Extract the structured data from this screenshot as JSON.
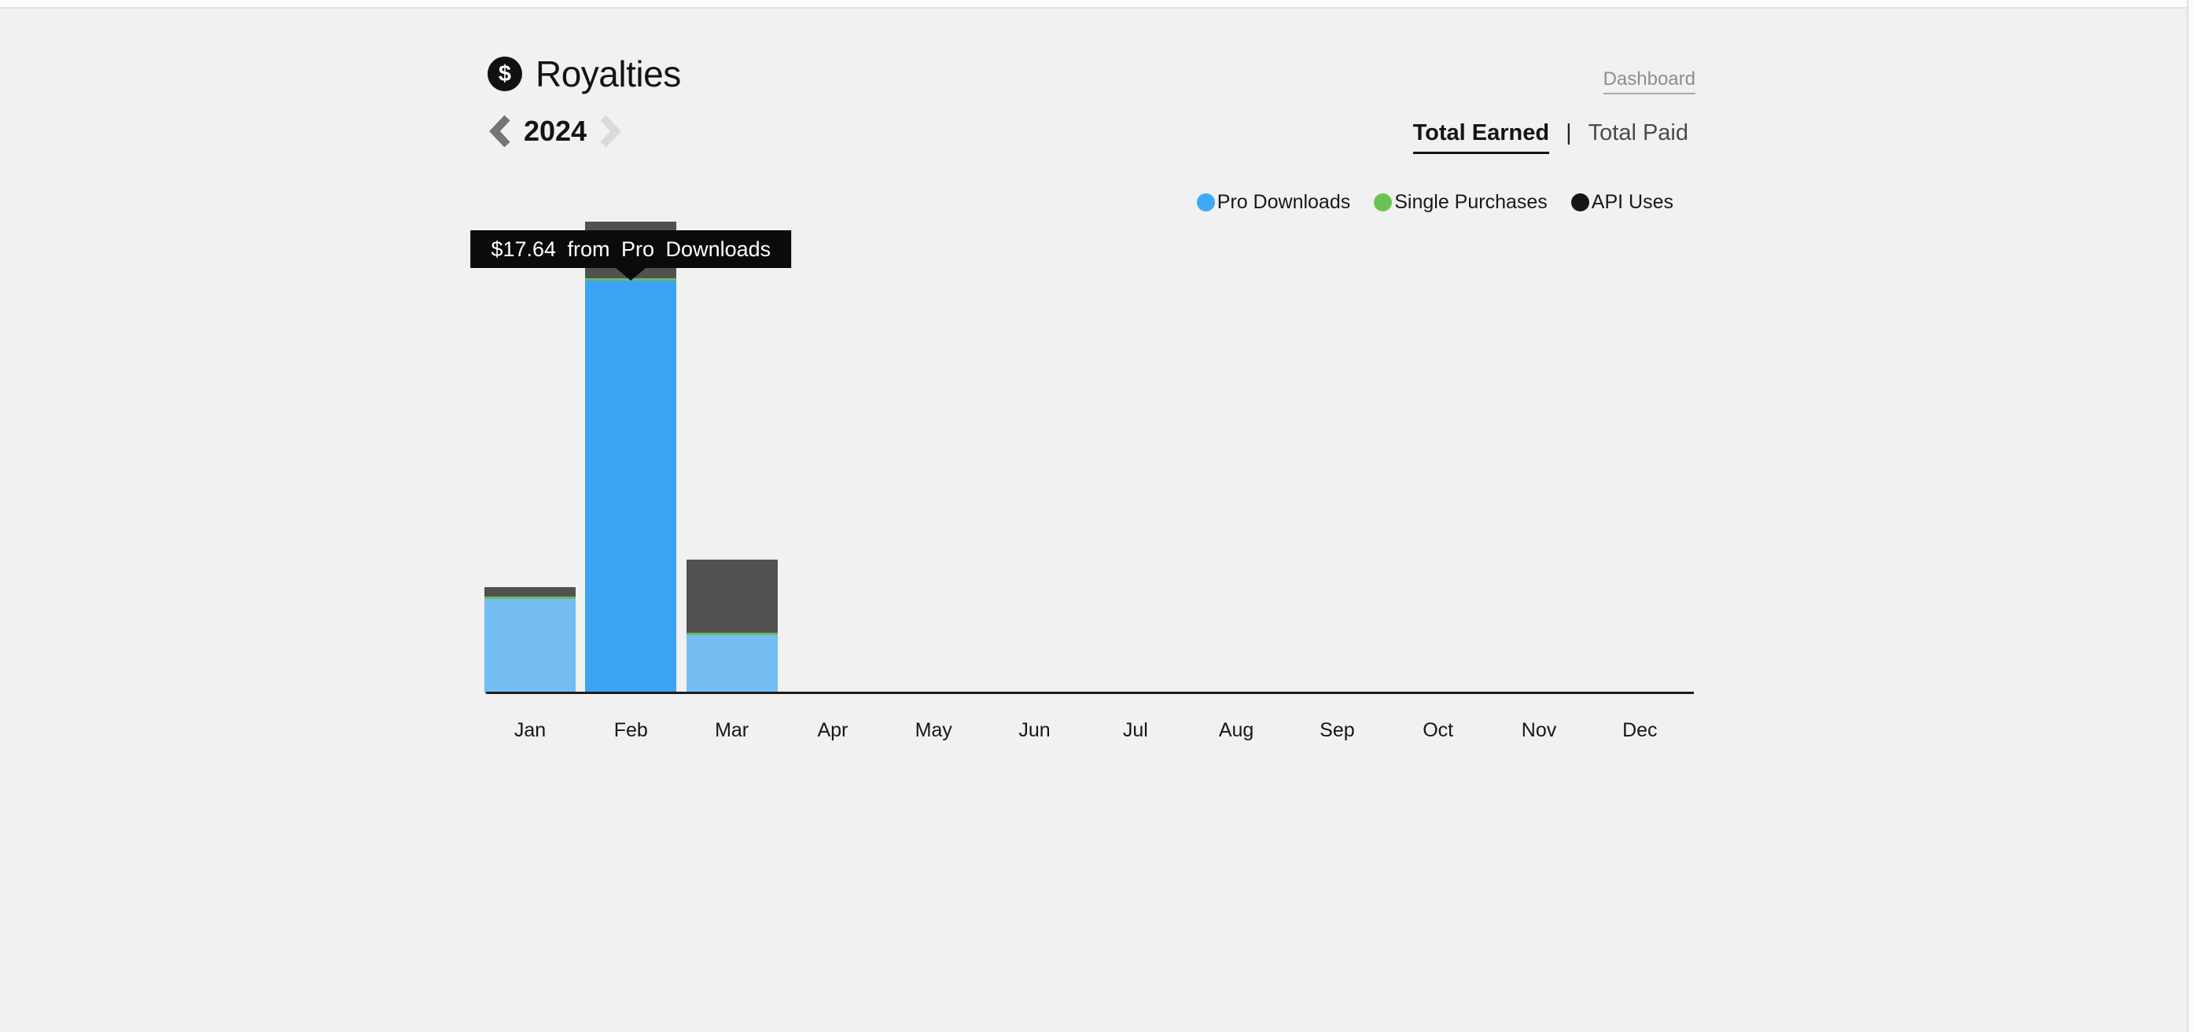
{
  "page": {
    "title": "Royalties",
    "icon_glyph": "$"
  },
  "nav": {
    "year": "2024"
  },
  "links": {
    "dashboard": "Dashboard"
  },
  "tabs": {
    "active": "Total Earned",
    "separator": "|",
    "inactive": "Total Paid"
  },
  "legend": {
    "items": [
      {
        "label": "Pro Downloads",
        "color": "#3fa9f5"
      },
      {
        "label": "Single Purchases",
        "color": "#6cc353"
      },
      {
        "label": "API Uses",
        "color": "#161616"
      }
    ]
  },
  "chart_data": {
    "type": "bar",
    "stacked": true,
    "title": "Royalties earned per month, 2024",
    "categories": [
      "Jan",
      "Feb",
      "Mar",
      "Apr",
      "May",
      "Jun",
      "Jul",
      "Aug",
      "Sep",
      "Oct",
      "Nov",
      "Dec"
    ],
    "unit": "USD",
    "series": [
      {
        "name": "Pro Downloads",
        "color": "#74bdf2",
        "color_highlight": "#3ba3f3",
        "values": [
          4.02,
          17.64,
          2.49,
          0,
          0,
          0,
          0,
          0,
          0,
          0,
          0,
          0
        ]
      },
      {
        "name": "Single Purchases",
        "color": "#6cb861",
        "values": [
          0.1,
          0.1,
          0.1,
          0,
          0,
          0,
          0,
          0,
          0,
          0,
          0,
          0
        ]
      },
      {
        "name": "API Uses",
        "color": "#515151",
        "values": [
          0.42,
          2.42,
          3.13,
          0,
          0,
          0,
          0,
          0,
          0,
          0,
          0,
          0
        ]
      }
    ],
    "ylim": [
      0,
      20.2
    ],
    "grid": false,
    "legend_position": "top-right",
    "highlight": {
      "category": "Feb",
      "series": "Pro Downloads"
    },
    "tooltip_text": "$17.64 from Pro Downloads"
  }
}
